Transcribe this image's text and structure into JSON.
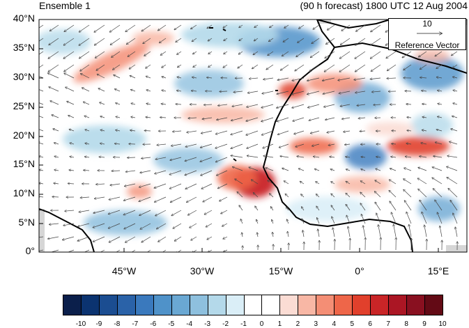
{
  "map": {
    "title_left": "Ensemble 1",
    "title_right": "(90 h forecast) 1800 UTC 12 Aug 2004",
    "lat_labels": [
      "40°N",
      "35°N",
      "30°N",
      "25°N",
      "20°N",
      "15°N",
      "10°N",
      "5°N",
      "0°"
    ],
    "lon_labels": [
      "45°W",
      "30°W",
      "15°W",
      "0°",
      "15°E"
    ],
    "reference_vector": {
      "magnitude": "10",
      "label": "Reference Vector"
    }
  },
  "colorbar": {
    "labels": [
      "-10",
      "-9",
      "-8",
      "-7",
      "-6",
      "-5",
      "-4",
      "-3",
      "-2",
      "-1",
      "0",
      "1",
      "2",
      "3",
      "4",
      "5",
      "6",
      "7",
      "8",
      "9",
      "10"
    ],
    "colors": [
      "#0b1f4b",
      "#0b3370",
      "#1b4d91",
      "#2a62a8",
      "#3a79bd",
      "#4f92c9",
      "#6aa8d3",
      "#8ec0de",
      "#b4d9ea",
      "#daeef7",
      "#ffffff",
      "#ffffff",
      "#fbdcd4",
      "#f8b7a5",
      "#f48e75",
      "#ee6649",
      "#e1402c",
      "#c92527",
      "#ab1624",
      "#891020",
      "#630a15"
    ]
  },
  "colors": {
    "land_background": "#ffffff",
    "missing": "#d6d6d6",
    "coast": "#000000",
    "vector": "#333333"
  }
}
